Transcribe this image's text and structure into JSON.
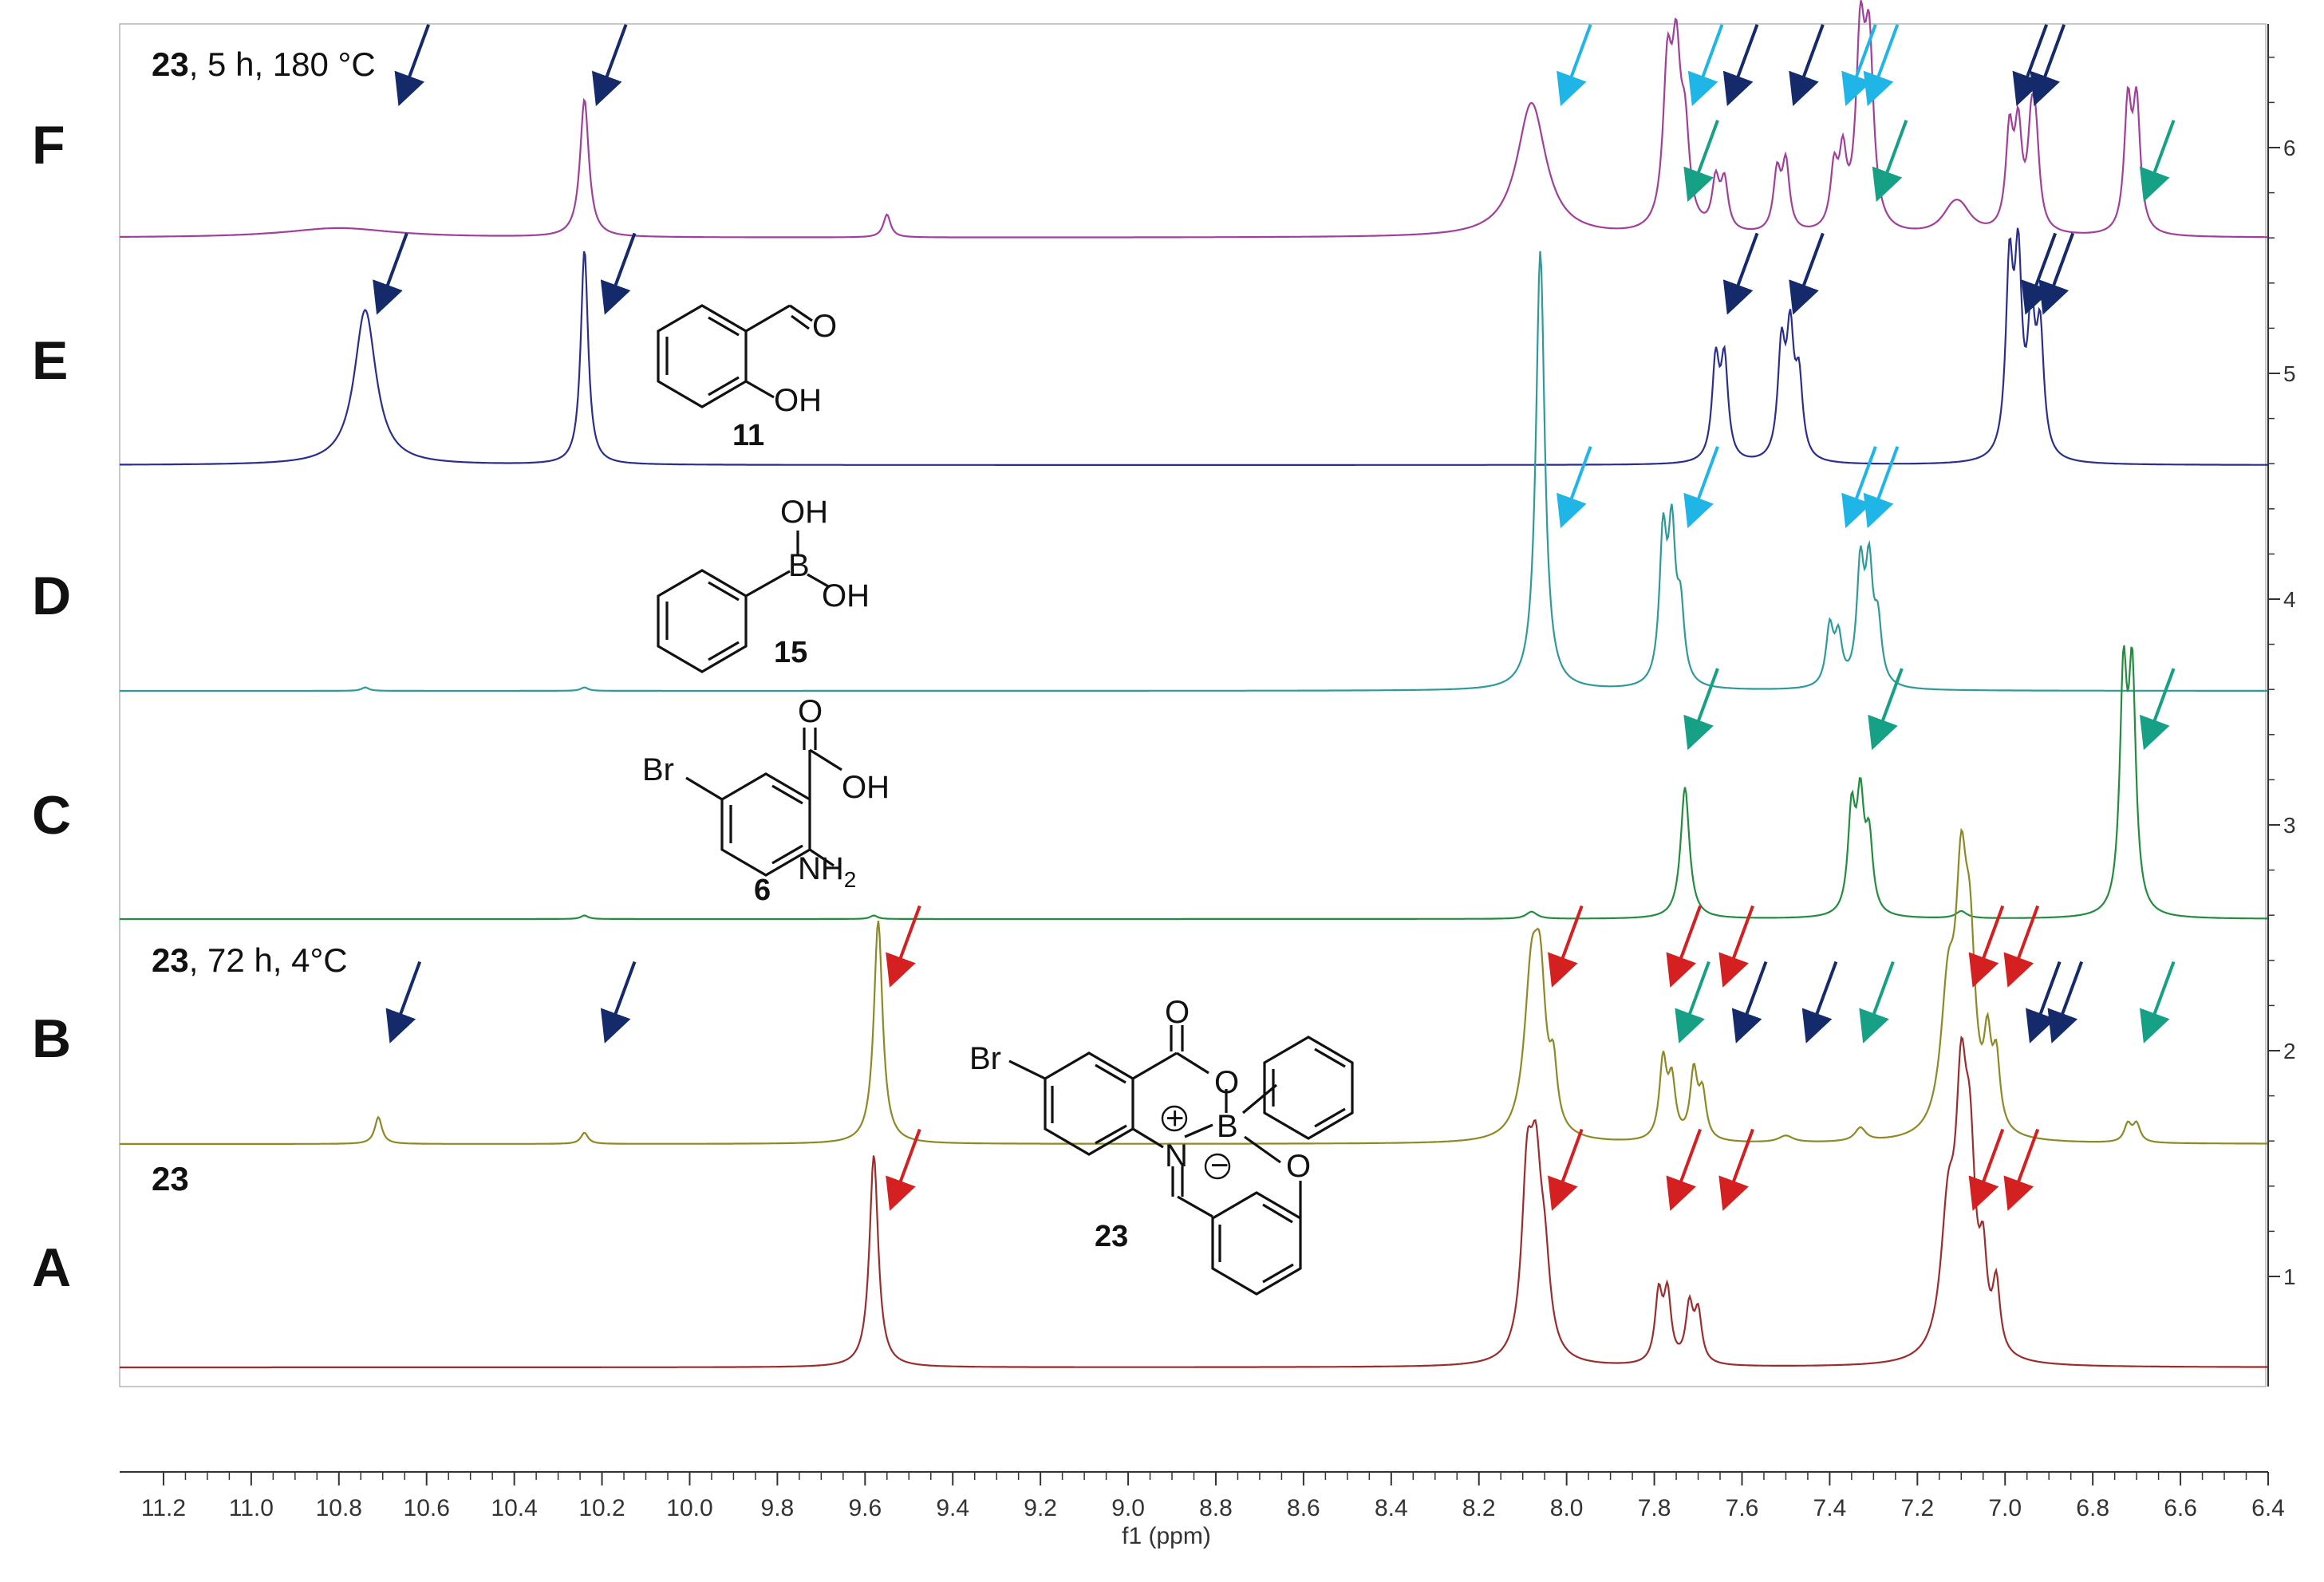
{
  "chart_data": {
    "type": "line",
    "xlabel": "f1 (ppm)",
    "x_reversed": true,
    "xlim": [
      11.3,
      6.4
    ],
    "x_ticks": [
      "11.2",
      "11.0",
      "10.8",
      "10.6",
      "10.4",
      "10.2",
      "10.0",
      "9.8",
      "9.6",
      "9.4",
      "9.2",
      "9.0",
      "8.8",
      "8.6",
      "8.4",
      "8.2",
      "8.0",
      "7.8",
      "7.6",
      "7.4",
      "7.2",
      "7.0",
      "6.8",
      "6.6",
      "6.4"
    ],
    "right_ticks": [
      "1",
      "2",
      "3",
      "4",
      "5",
      "6"
    ],
    "spectra": [
      {
        "label": "F",
        "caption_bold": "23",
        "caption_rest": ", 5 h, 180 °C",
        "color": "#a0409a",
        "peaks": [
          [
            10.8,
            0.05,
            0.15
          ],
          [
            10.24,
            0.72,
            0.012
          ],
          [
            9.55,
            0.12,
            0.01
          ],
          [
            8.08,
            0.7,
            0.04
          ],
          [
            7.77,
            0.78,
            0.012
          ],
          [
            7.75,
            0.8,
            0.012
          ],
          [
            7.73,
            0.45,
            0.012
          ],
          [
            7.66,
            0.25,
            0.01
          ],
          [
            7.64,
            0.25,
            0.01
          ],
          [
            7.52,
            0.3,
            0.01
          ],
          [
            7.5,
            0.35,
            0.01
          ],
          [
            7.39,
            0.3,
            0.01
          ],
          [
            7.37,
            0.35,
            0.01
          ],
          [
            7.33,
            0.95,
            0.012
          ],
          [
            7.31,
            0.9,
            0.012
          ],
          [
            7.12,
            0.1,
            0.03
          ],
          [
            7.1,
            0.1,
            0.03
          ],
          [
            6.99,
            0.5,
            0.01
          ],
          [
            6.97,
            0.5,
            0.01
          ],
          [
            6.94,
            0.45,
            0.01
          ],
          [
            6.93,
            0.4,
            0.01
          ],
          [
            6.72,
            0.65,
            0.01
          ],
          [
            6.7,
            0.65,
            0.01
          ]
        ]
      },
      {
        "label": "E",
        "caption_bold": "",
        "caption_rest": "",
        "color": "#2b2f8c",
        "peaks": [
          [
            10.74,
            0.72,
            0.03
          ],
          [
            10.24,
            1.0,
            0.01
          ],
          [
            7.66,
            0.45,
            0.01
          ],
          [
            7.64,
            0.45,
            0.01
          ],
          [
            7.51,
            0.5,
            0.01
          ],
          [
            7.49,
            0.55,
            0.01
          ],
          [
            7.47,
            0.35,
            0.01
          ],
          [
            6.99,
            0.85,
            0.01
          ],
          [
            6.97,
            0.85,
            0.01
          ],
          [
            6.94,
            0.6,
            0.01
          ],
          [
            6.92,
            0.55,
            0.01
          ]
        ]
      },
      {
        "label": "D",
        "caption_bold": "",
        "caption_rest": "",
        "color": "#2f9a9c",
        "peaks": [
          [
            10.74,
            0.015,
            0.01
          ],
          [
            10.24,
            0.015,
            0.01
          ],
          [
            8.06,
            1.9,
            0.012
          ],
          [
            7.78,
            0.62,
            0.01
          ],
          [
            7.76,
            0.62,
            0.01
          ],
          [
            7.74,
            0.3,
            0.01
          ],
          [
            7.4,
            0.25,
            0.01
          ],
          [
            7.38,
            0.2,
            0.01
          ],
          [
            7.33,
            0.5,
            0.01
          ],
          [
            7.31,
            0.48,
            0.01
          ],
          [
            7.29,
            0.25,
            0.01
          ]
        ]
      },
      {
        "label": "C",
        "caption_bold": "",
        "caption_rest": "",
        "color": "#238c3f",
        "peaks": [
          [
            10.24,
            0.015,
            0.01
          ],
          [
            9.58,
            0.015,
            0.01
          ],
          [
            8.08,
            0.03,
            0.015
          ],
          [
            7.73,
            0.55,
            0.012
          ],
          [
            7.35,
            0.42,
            0.01
          ],
          [
            7.33,
            0.45,
            0.01
          ],
          [
            7.31,
            0.3,
            0.01
          ],
          [
            7.1,
            0.03,
            0.015
          ],
          [
            6.73,
            0.95,
            0.01
          ],
          [
            6.71,
            0.95,
            0.01
          ]
        ]
      },
      {
        "label": "B",
        "caption_bold": "23",
        "caption_rest": ", 72 h, 4°C",
        "color": "#8d8a25",
        "peaks": [
          [
            10.71,
            0.12,
            0.01
          ],
          [
            10.24,
            0.05,
            0.01
          ],
          [
            9.57,
            1.0,
            0.012
          ],
          [
            8.08,
            0.7,
            0.02
          ],
          [
            8.06,
            0.55,
            0.015
          ],
          [
            8.03,
            0.25,
            0.01
          ],
          [
            7.78,
            0.35,
            0.01
          ],
          [
            7.76,
            0.25,
            0.01
          ],
          [
            7.71,
            0.3,
            0.01
          ],
          [
            7.69,
            0.2,
            0.01
          ],
          [
            7.5,
            0.03,
            0.02
          ],
          [
            7.33,
            0.06,
            0.015
          ],
          [
            7.13,
            0.6,
            0.02
          ],
          [
            7.1,
            0.95,
            0.015
          ],
          [
            7.08,
            0.7,
            0.015
          ],
          [
            7.04,
            0.35,
            0.01
          ],
          [
            7.02,
            0.3,
            0.01
          ],
          [
            6.72,
            0.08,
            0.01
          ],
          [
            6.7,
            0.08,
            0.01
          ]
        ]
      },
      {
        "label": "A",
        "caption_bold": "23",
        "caption_rest": "",
        "color": "#9a2d2d",
        "peaks": [
          [
            9.58,
            0.95,
            0.012
          ],
          [
            8.09,
            0.75,
            0.015
          ],
          [
            8.07,
            0.7,
            0.015
          ],
          [
            8.05,
            0.35,
            0.015
          ],
          [
            7.79,
            0.3,
            0.01
          ],
          [
            7.77,
            0.3,
            0.01
          ],
          [
            7.72,
            0.25,
            0.01
          ],
          [
            7.7,
            0.22,
            0.01
          ],
          [
            7.13,
            0.6,
            0.02
          ],
          [
            7.1,
            1.0,
            0.015
          ],
          [
            7.08,
            0.75,
            0.015
          ],
          [
            7.05,
            0.35,
            0.01
          ],
          [
            7.02,
            0.3,
            0.01
          ]
        ]
      }
    ]
  },
  "arrows": {
    "colors": {
      "navy": "#142a6b",
      "cyan": "#1fb5e6",
      "green": "#16a085",
      "red": "#d42020"
    },
    "items": [
      {
        "row": "F",
        "x": 10.65,
        "c": "navy"
      },
      {
        "row": "F",
        "x": 10.2,
        "c": "navy"
      },
      {
        "row": "F",
        "x": 8.0,
        "c": "cyan"
      },
      {
        "row": "F",
        "x": 7.7,
        "c": "cyan"
      },
      {
        "row": "F",
        "x": 7.62,
        "c": "navy"
      },
      {
        "row": "F",
        "x": 7.47,
        "c": "navy"
      },
      {
        "row": "F",
        "x": 7.35,
        "c": "cyan"
      },
      {
        "row": "F",
        "x": 7.3,
        "c": "cyan"
      },
      {
        "row": "F",
        "x": 7.71,
        "c": "green",
        "lvl": 1
      },
      {
        "row": "F",
        "x": 7.28,
        "c": "green",
        "lvl": 1
      },
      {
        "row": "F",
        "x": 6.96,
        "c": "navy"
      },
      {
        "row": "F",
        "x": 6.92,
        "c": "navy"
      },
      {
        "row": "F",
        "x": 6.67,
        "c": "green",
        "lvl": 1
      },
      {
        "row": "E",
        "x": 10.7,
        "c": "navy"
      },
      {
        "row": "E",
        "x": 10.18,
        "c": "navy"
      },
      {
        "row": "E",
        "x": 7.62,
        "c": "navy"
      },
      {
        "row": "E",
        "x": 7.47,
        "c": "navy"
      },
      {
        "row": "E",
        "x": 6.94,
        "c": "navy"
      },
      {
        "row": "E",
        "x": 6.9,
        "c": "navy"
      },
      {
        "row": "D",
        "x": 8.0,
        "c": "cyan"
      },
      {
        "row": "D",
        "x": 7.71,
        "c": "cyan"
      },
      {
        "row": "D",
        "x": 7.35,
        "c": "cyan"
      },
      {
        "row": "D",
        "x": 7.3,
        "c": "cyan"
      },
      {
        "row": "C",
        "x": 7.71,
        "c": "green"
      },
      {
        "row": "C",
        "x": 7.29,
        "c": "green"
      },
      {
        "row": "C",
        "x": 6.67,
        "c": "green"
      },
      {
        "row": "B",
        "x": 10.67,
        "c": "navy",
        "lvl": 2
      },
      {
        "row": "B",
        "x": 10.18,
        "c": "navy",
        "lvl": 2
      },
      {
        "row": "B",
        "x": 9.53,
        "c": "red"
      },
      {
        "row": "B",
        "x": 8.02,
        "c": "red"
      },
      {
        "row": "B",
        "x": 7.75,
        "c": "red"
      },
      {
        "row": "B",
        "x": 7.63,
        "c": "red"
      },
      {
        "row": "B",
        "x": 7.73,
        "c": "green",
        "lvl": 2
      },
      {
        "row": "B",
        "x": 7.6,
        "c": "navy",
        "lvl": 2
      },
      {
        "row": "B",
        "x": 7.44,
        "c": "navy",
        "lvl": 2
      },
      {
        "row": "B",
        "x": 7.31,
        "c": "green",
        "lvl": 2
      },
      {
        "row": "B",
        "x": 7.06,
        "c": "red"
      },
      {
        "row": "B",
        "x": 6.98,
        "c": "red"
      },
      {
        "row": "B",
        "x": 6.93,
        "c": "navy",
        "lvl": 2
      },
      {
        "row": "B",
        "x": 6.88,
        "c": "navy",
        "lvl": 2
      },
      {
        "row": "B",
        "x": 6.67,
        "c": "green",
        "lvl": 2
      },
      {
        "row": "A",
        "x": 9.53,
        "c": "red"
      },
      {
        "row": "A",
        "x": 8.02,
        "c": "red"
      },
      {
        "row": "A",
        "x": 7.75,
        "c": "red"
      },
      {
        "row": "A",
        "x": 7.63,
        "c": "red"
      },
      {
        "row": "A",
        "x": 7.06,
        "c": "red"
      },
      {
        "row": "A",
        "x": 6.98,
        "c": "red"
      }
    ]
  },
  "structures": {
    "s11": {
      "atom_o": "O",
      "atom_oh": "OH",
      "number": "11"
    },
    "s15": {
      "atom_oh_top": "OH",
      "atom_b": "B",
      "atom_oh_right": "OH",
      "number": "15"
    },
    "s6": {
      "atom_br": "Br",
      "atom_o": "O",
      "atom_oh": "OH",
      "atom_nh": "NH",
      "atom_sub2": "2",
      "number": "6"
    },
    "s23": {
      "atom_br": "Br",
      "atom_o_top": "O",
      "atom_o_ring": "O",
      "atom_b": "B",
      "atom_n": "N",
      "atom_o_phen": "O",
      "charge_plus": "+",
      "charge_minus": "−",
      "number": "23"
    }
  }
}
